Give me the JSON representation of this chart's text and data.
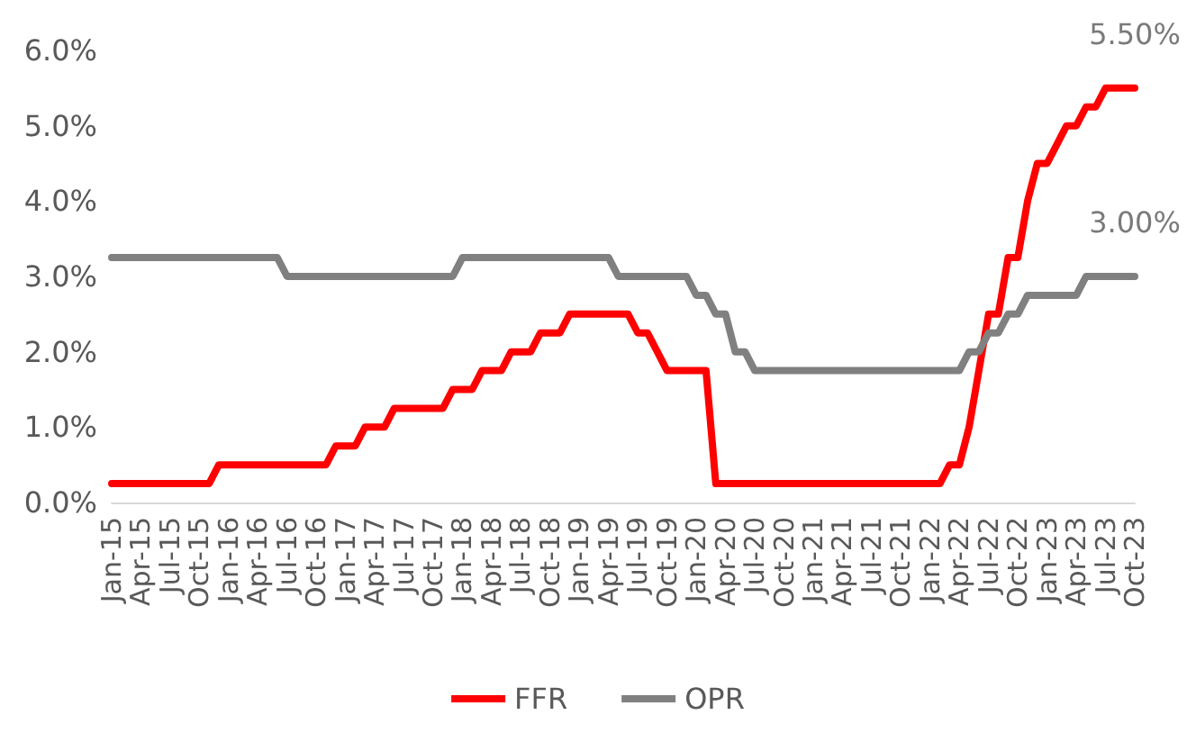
{
  "chart_data": {
    "type": "line",
    "categories": [
      "Jan-15",
      null,
      null,
      "Apr-15",
      null,
      null,
      "Jul-15",
      null,
      null,
      "Oct-15",
      null,
      null,
      "Jan-16",
      null,
      null,
      "Apr-16",
      null,
      null,
      "Jul-16",
      null,
      null,
      "Oct-16",
      null,
      null,
      "Jan-17",
      null,
      null,
      "Apr-17",
      null,
      null,
      "Jul-17",
      null,
      null,
      "Oct-17",
      null,
      null,
      "Jan-18",
      null,
      null,
      "Apr-18",
      null,
      null,
      "Jul-18",
      null,
      null,
      "Oct-18",
      null,
      null,
      "Jan-19",
      null,
      null,
      "Apr-19",
      null,
      null,
      "Jul-19",
      null,
      null,
      "Oct-19",
      null,
      null,
      "Jan-20",
      null,
      null,
      "Apr-20",
      null,
      null,
      "Jul-20",
      null,
      null,
      "Oct-20",
      null,
      null,
      "Jan-21",
      null,
      null,
      "Apr-21",
      null,
      null,
      "Jul-21",
      null,
      null,
      "Oct-21",
      null,
      null,
      "Jan-22",
      null,
      null,
      "Apr-22",
      null,
      null,
      "Jul-22",
      null,
      null,
      "Oct-22",
      null,
      null,
      "Jan-23",
      null,
      null,
      "Apr-23",
      null,
      null,
      "Jul-23",
      null,
      null,
      "Oct-23"
    ],
    "series": [
      {
        "name": "FFR",
        "color": "#ff0000",
        "values": [
          0.25,
          0.25,
          0.25,
          0.25,
          0.25,
          0.25,
          0.25,
          0.25,
          0.25,
          0.25,
          0.25,
          0.5,
          0.5,
          0.5,
          0.5,
          0.5,
          0.5,
          0.5,
          0.5,
          0.5,
          0.5,
          0.5,
          0.5,
          0.75,
          0.75,
          0.75,
          1,
          1,
          1,
          1.25,
          1.25,
          1.25,
          1.25,
          1.25,
          1.25,
          1.5,
          1.5,
          1.5,
          1.75,
          1.75,
          1.75,
          2,
          2,
          2,
          2.25,
          2.25,
          2.25,
          2.5,
          2.5,
          2.5,
          2.5,
          2.5,
          2.5,
          2.5,
          2.25,
          2.25,
          2,
          1.75,
          1.75,
          1.75,
          1.75,
          1.75,
          0.25,
          0.25,
          0.25,
          0.25,
          0.25,
          0.25,
          0.25,
          0.25,
          0.25,
          0.25,
          0.25,
          0.25,
          0.25,
          0.25,
          0.25,
          0.25,
          0.25,
          0.25,
          0.25,
          0.25,
          0.25,
          0.25,
          0.25,
          0.25,
          0.5,
          0.5,
          1,
          1.75,
          2.5,
          2.5,
          3.25,
          3.25,
          4,
          4.5,
          4.5,
          4.75,
          5,
          5,
          5.25,
          5.25,
          5.5,
          5.5,
          5.5,
          5.5
        ]
      },
      {
        "name": "OPR",
        "color": "#808080",
        "values": [
          3.25,
          3.25,
          3.25,
          3.25,
          3.25,
          3.25,
          3.25,
          3.25,
          3.25,
          3.25,
          3.25,
          3.25,
          3.25,
          3.25,
          3.25,
          3.25,
          3.25,
          3.25,
          3,
          3,
          3,
          3,
          3,
          3,
          3,
          3,
          3,
          3,
          3,
          3,
          3,
          3,
          3,
          3,
          3,
          3,
          3.25,
          3.25,
          3.25,
          3.25,
          3.25,
          3.25,
          3.25,
          3.25,
          3.25,
          3.25,
          3.25,
          3.25,
          3.25,
          3.25,
          3.25,
          3.25,
          3,
          3,
          3,
          3,
          3,
          3,
          3,
          3,
          2.75,
          2.75,
          2.5,
          2.5,
          2,
          2,
          1.75,
          1.75,
          1.75,
          1.75,
          1.75,
          1.75,
          1.75,
          1.75,
          1.75,
          1.75,
          1.75,
          1.75,
          1.75,
          1.75,
          1.75,
          1.75,
          1.75,
          1.75,
          1.75,
          1.75,
          1.75,
          1.75,
          2,
          2,
          2.25,
          2.25,
          2.5,
          2.5,
          2.75,
          2.75,
          2.75,
          2.75,
          2.75,
          2.75,
          3,
          3,
          3,
          3,
          3,
          3
        ]
      }
    ],
    "ylim": [
      0,
      6
    ],
    "yticks": [
      {
        "value": 0,
        "label": "0.0%"
      },
      {
        "value": 1,
        "label": "1.0%"
      },
      {
        "value": 2,
        "label": "2.0%"
      },
      {
        "value": 3,
        "label": "3.0%"
      },
      {
        "value": 4,
        "label": "4.0%"
      },
      {
        "value": 5,
        "label": "5.0%"
      },
      {
        "value": 6,
        "label": "6.0%"
      }
    ],
    "annotations": [
      {
        "text": "5.50%",
        "x": "Oct-23",
        "y": 5.5
      },
      {
        "text": "3.00%",
        "x": "Oct-23",
        "y": 3
      }
    ],
    "legend": "bottom",
    "grid": false,
    "marker": "none"
  }
}
